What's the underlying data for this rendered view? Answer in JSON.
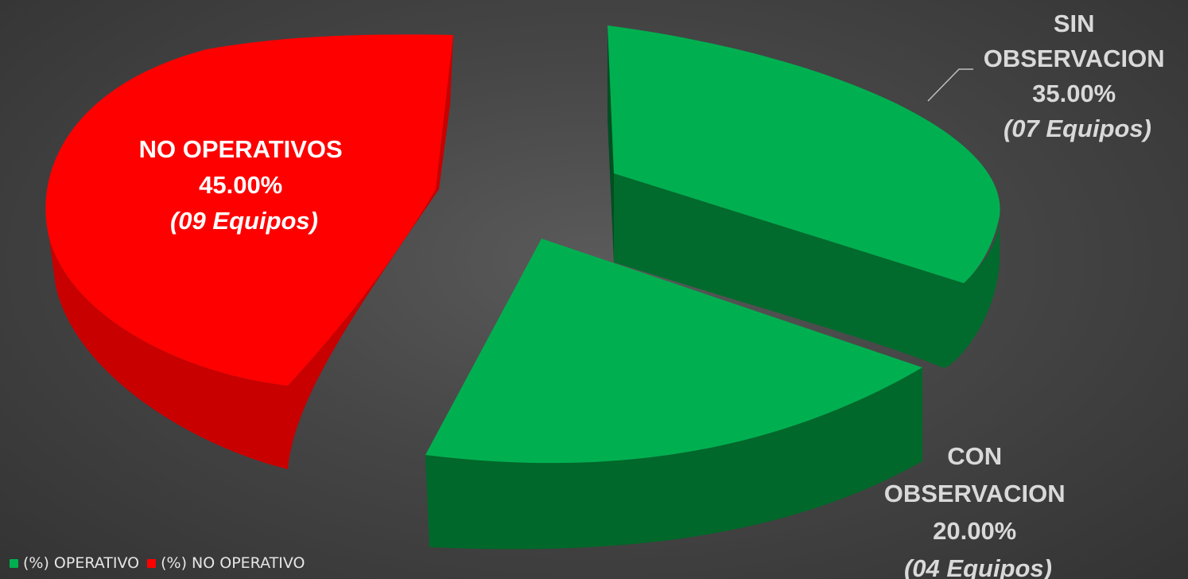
{
  "chart_data": {
    "type": "pie",
    "style": "3d-exploded",
    "slices": [
      {
        "category": "(%) NO OPERATIVO",
        "label": "NO OPERATIVOS",
        "value": 45.0,
        "percent_text": "45.00%",
        "count_text": "(09 Equipos)",
        "color": "#FF0000",
        "side_color": "#C80000"
      },
      {
        "category": "(%) OPERATIVO",
        "label": "SIN OBSERVACION",
        "value": 35.0,
        "percent_text": "35.00%",
        "count_text": "(07 Equipos)",
        "color": "#00B050",
        "side_color": "#006B2C"
      },
      {
        "category": "(%) OPERATIVO",
        "label": "CON OBSERVACION",
        "value": 20.0,
        "percent_text": "20.00%",
        "count_text": "(04 Equipos)",
        "color": "#00B050",
        "side_color": "#00682A"
      }
    ],
    "legend": {
      "placement": "bottom-left",
      "entries": [
        {
          "name": "(%) OPERATIVO",
          "color": "#00B050"
        },
        {
          "name": "(%) NO OPERATIVO",
          "color": "#FF0000"
        }
      ]
    }
  }
}
